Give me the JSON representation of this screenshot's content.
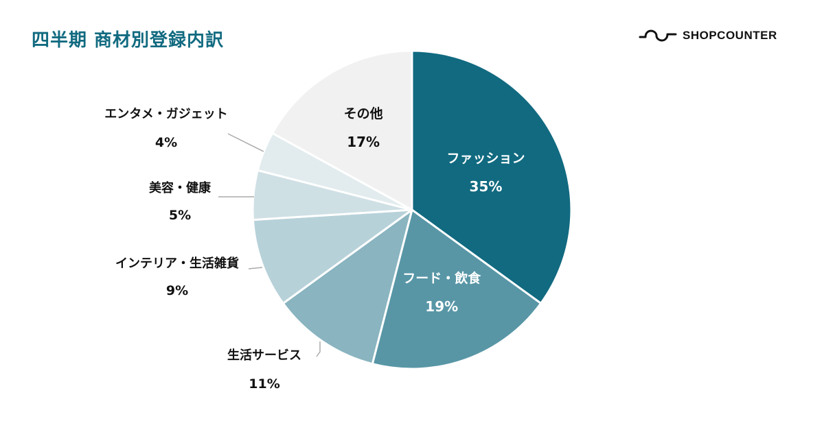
{
  "header": {
    "title": "四半期 商材別登録内訳",
    "logo_text": "SHOPCOUNTER",
    "logo_icon": "wave-logo-icon"
  },
  "colors": {
    "title": "#116a80",
    "outside_label": "#111111",
    "inside_label": "#ffffff",
    "leader_line": "#aaaaaa"
  },
  "chart_data": {
    "type": "pie",
    "title": "",
    "start": "12 o'clock",
    "direction": "clockwise",
    "slices": [
      {
        "label": "ファッション",
        "value": 35,
        "display": "35%",
        "color": "#116a80",
        "label_position": "inside"
      },
      {
        "label": "フード・飲食",
        "value": 19,
        "display": "19%",
        "color": "#5896a6",
        "label_position": "inside"
      },
      {
        "label": "生活サービス",
        "value": 11,
        "display": "11%",
        "color": "#89b4c0",
        "label_position": "outside"
      },
      {
        "label": "インテリア・生活雑貨",
        "value": 9,
        "display": "9%",
        "color": "#b7d1d9",
        "label_position": "outside"
      },
      {
        "label": "美容・健康",
        "value": 5,
        "display": "5%",
        "color": "#cfe0e5",
        "label_position": "outside"
      },
      {
        "label": "エンタメ・ガジェット",
        "value": 4,
        "display": "4%",
        "color": "#e2ecee",
        "label_position": "outside"
      },
      {
        "label": "その他",
        "value": 17,
        "display": "17%",
        "color": "#f1f1f1",
        "label_position": "inside"
      }
    ]
  }
}
